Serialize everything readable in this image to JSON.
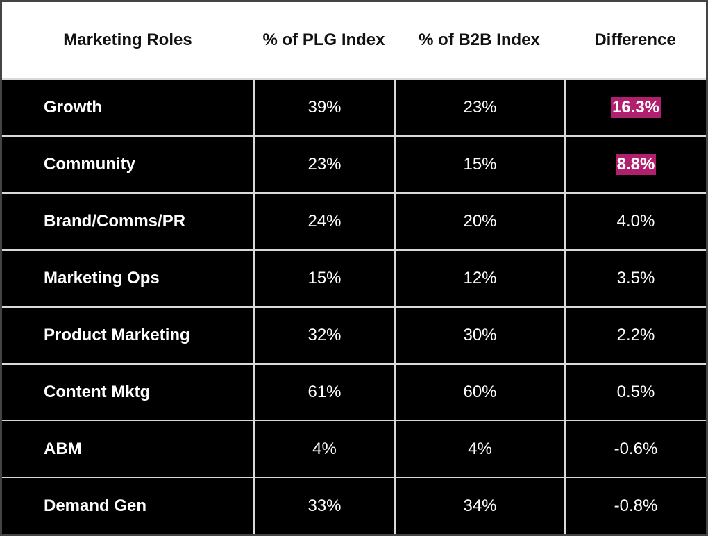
{
  "table": {
    "headers": [
      "Marketing Roles",
      "% of PLG Index",
      "% of B2B Index",
      "Difference"
    ],
    "rows": [
      {
        "role": "Growth",
        "plg": "39%",
        "b2b": "23%",
        "diff": "16.3%",
        "highlight": true
      },
      {
        "role": "Community",
        "plg": "23%",
        "b2b": "15%",
        "diff": "8.8%",
        "highlight": true
      },
      {
        "role": "Brand/Comms/PR",
        "plg": "24%",
        "b2b": "20%",
        "diff": "4.0%",
        "highlight": false
      },
      {
        "role": "Marketing Ops",
        "plg": "15%",
        "b2b": "12%",
        "diff": "3.5%",
        "highlight": false
      },
      {
        "role": "Product Marketing",
        "plg": "32%",
        "b2b": "30%",
        "diff": "2.2%",
        "highlight": false
      },
      {
        "role": "Content Mktg",
        "plg": "61%",
        "b2b": "60%",
        "diff": "0.5%",
        "highlight": false
      },
      {
        "role": "ABM",
        "plg": "4%",
        "b2b": "4%",
        "diff": "-0.6%",
        "highlight": false
      },
      {
        "role": "Demand Gen",
        "plg": "33%",
        "b2b": "34%",
        "diff": "-0.8%",
        "highlight": false
      }
    ]
  },
  "colors": {
    "highlight": "#b0206e",
    "row_background": "#000000",
    "header_background": "#ffffff",
    "grid_line": "#d9d9d9"
  }
}
